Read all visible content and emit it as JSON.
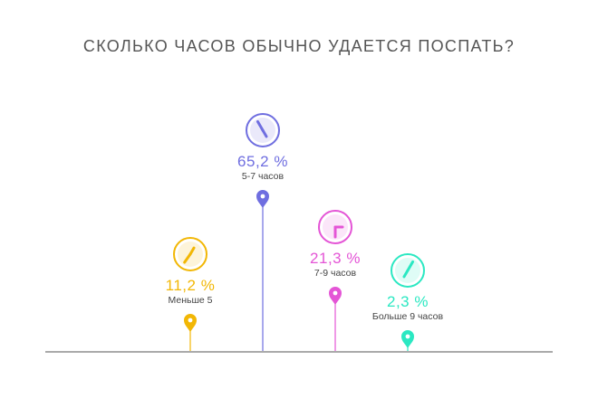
{
  "chart_data": {
    "type": "lollipop",
    "title": "СКОЛЬКО ЧАСОВ ОБЫЧНО УДАЕТСЯ ПОСПАТЬ?",
    "categories": [
      "Меньше 5",
      "5-7 часов",
      "7-9 часов",
      "Больше 9 часов"
    ],
    "values": [
      11.2,
      65.2,
      21.3,
      2.3
    ],
    "value_labels": [
      "11,2 %",
      "65,2 %",
      "21,3 %",
      "2,3 %"
    ],
    "colors": [
      "#f2b705",
      "#6f6ee0",
      "#e455d6",
      "#2be8c2"
    ],
    "clock_icons": [
      "clock-icon",
      "clock-icon",
      "clock-icon",
      "clock-icon"
    ],
    "baseline_color": "#aaaaaa",
    "grid": false,
    "legend": "none"
  }
}
